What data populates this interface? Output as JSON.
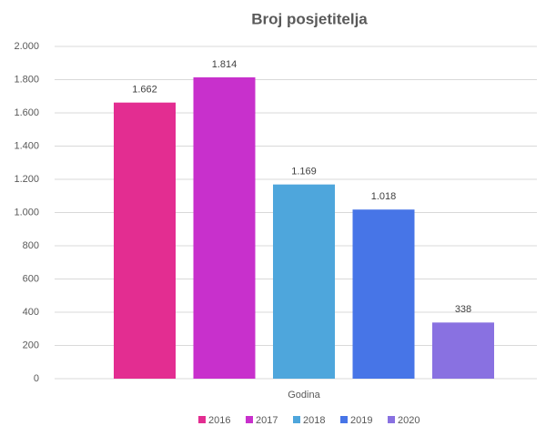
{
  "chart_data": {
    "type": "bar",
    "title": "Broj posjetitelja",
    "categories": [
      "Godina"
    ],
    "series": [
      {
        "name": "2016",
        "color": "#E32D91",
        "values": [
          1662
        ],
        "value_labels": [
          "1.662"
        ]
      },
      {
        "name": "2017",
        "color": "#C830CC",
        "values": [
          1814
        ],
        "value_labels": [
          "1.814"
        ]
      },
      {
        "name": "2018",
        "color": "#4EA6DC",
        "values": [
          1169
        ],
        "value_labels": [
          "1.169"
        ]
      },
      {
        "name": "2019",
        "color": "#4775E7",
        "values": [
          1018
        ],
        "value_labels": [
          "1.018"
        ]
      },
      {
        "name": "2020",
        "color": "#8971E1",
        "values": [
          338
        ],
        "value_labels": [
          "338"
        ]
      }
    ],
    "ylim": [
      0,
      2000
    ],
    "yticks": [
      0,
      200,
      400,
      600,
      800,
      {
        "value": 1000,
        "label": "1.000"
      },
      {
        "value": 1200,
        "label": "1.200"
      },
      {
        "value": 1400,
        "label": "1.400"
      },
      {
        "value": 1600,
        "label": "1.600"
      },
      {
        "value": 1800,
        "label": "1.800"
      },
      {
        "value": 2000,
        "label": "2.000"
      }
    ],
    "grid": true,
    "legend": "bottom"
  }
}
